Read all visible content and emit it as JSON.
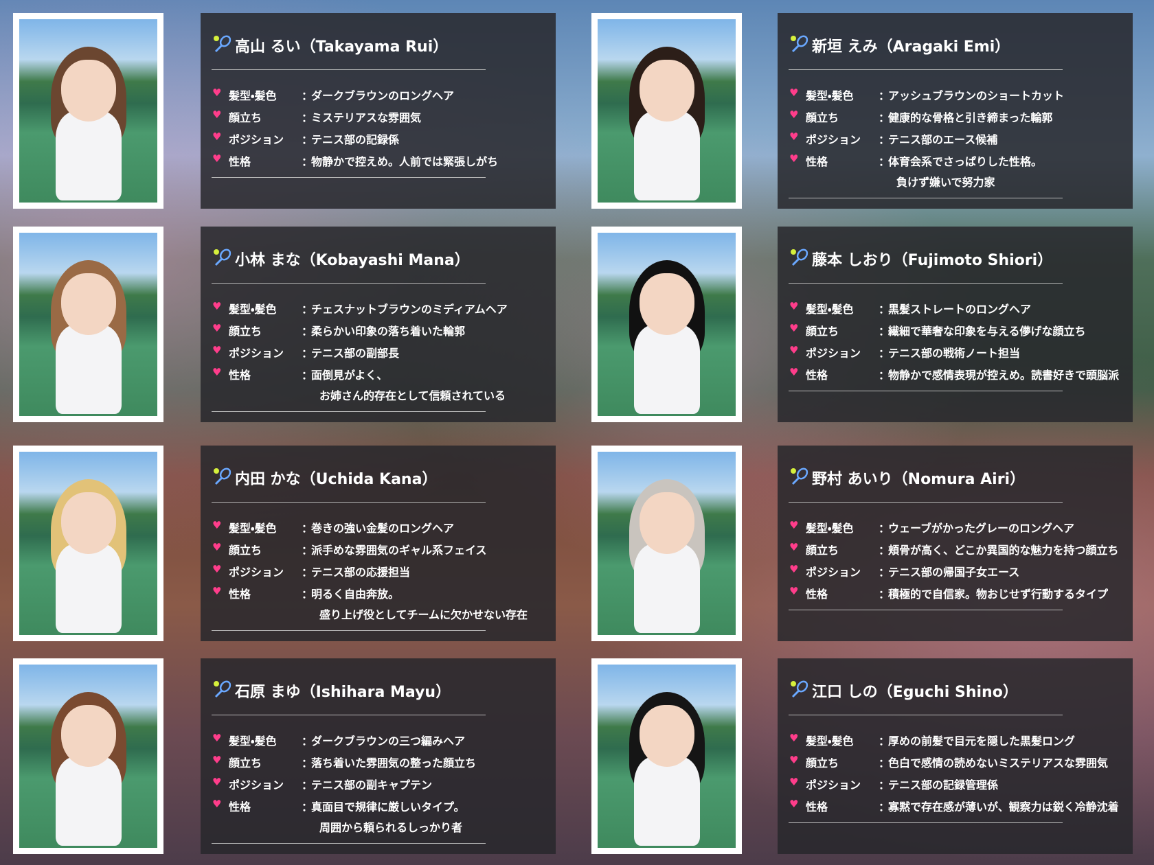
{
  "profiles": [
    {
      "name": "高山 るい（Takayama Rui）",
      "attributes": [
        {
          "label": "髪型・髪色",
          "lines": [
            "ダークブラウンのロングヘア"
          ]
        },
        {
          "label": "顔立ち",
          "lines": [
            "ミステリアスな雰囲気"
          ]
        },
        {
          "label": "ポジション",
          "lines": [
            "テニス部の記録係"
          ]
        },
        {
          "label": "性格",
          "lines": [
            "物静かで控えめ。人前では緊張しがち"
          ]
        }
      ]
    },
    {
      "name": "新垣 えみ（Aragaki Emi）",
      "attributes": [
        {
          "label": "髪型・髪色",
          "lines": [
            "アッシュブラウンのショートカット"
          ]
        },
        {
          "label": "顔立ち",
          "lines": [
            "健康的な骨格と引き締まった輪郭"
          ]
        },
        {
          "label": "ポジション",
          "lines": [
            "テニス部のエース候補"
          ]
        },
        {
          "label": "性格",
          "lines": [
            "体育会系でさっぱりした性格。",
            "負けず嫌いで努力家"
          ]
        }
      ]
    },
    {
      "name": "小林 まな（Kobayashi Mana）",
      "attributes": [
        {
          "label": "髪型・髪色",
          "lines": [
            "チェスナットブラウンのミディアムヘア"
          ]
        },
        {
          "label": "顔立ち",
          "lines": [
            "柔らかい印象の落ち着いた輪郭"
          ]
        },
        {
          "label": "ポジション",
          "lines": [
            "テニス部の副部長"
          ]
        },
        {
          "label": "性格",
          "lines": [
            "面倒見がよく、",
            "お姉さん的存在として信頼されている"
          ]
        }
      ]
    },
    {
      "name": "藤本 しおり（Fujimoto Shiori）",
      "attributes": [
        {
          "label": "髪型・髪色",
          "lines": [
            "黒髪ストレートのロングヘア"
          ]
        },
        {
          "label": "顔立ち",
          "lines": [
            "繊細で華奢な印象を与える儚げな顔立ち"
          ]
        },
        {
          "label": "ポジション",
          "lines": [
            "テニス部の戦術ノート担当"
          ]
        },
        {
          "label": "性格",
          "lines": [
            "物静かで感情表現が控えめ。読書好きで頭脳派"
          ]
        }
      ]
    },
    {
      "name": "内田 かな（Uchida Kana）",
      "attributes": [
        {
          "label": "髪型・髪色",
          "lines": [
            "巻きの強い金髪のロングヘア"
          ]
        },
        {
          "label": "顔立ち",
          "lines": [
            "派手めな雰囲気のギャル系フェイス"
          ]
        },
        {
          "label": "ポジション",
          "lines": [
            "テニス部の応援担当"
          ]
        },
        {
          "label": "性格",
          "lines": [
            "明るく自由奔放。",
            "盛り上げ役としてチームに欠かせない存在"
          ]
        }
      ]
    },
    {
      "name": "野村 あいり（Nomura Airi）",
      "attributes": [
        {
          "label": "髪型・髪色",
          "lines": [
            "ウェーブがかったグレーのロングヘア"
          ]
        },
        {
          "label": "顔立ち",
          "lines": [
            "頬骨が高く、どこか異国的な魅力を持つ顔立ち"
          ]
        },
        {
          "label": "ポジション",
          "lines": [
            "テニス部の帰国子女エース"
          ]
        },
        {
          "label": "性格",
          "lines": [
            "積極的で自信家。物おじせず行動するタイプ"
          ]
        }
      ]
    },
    {
      "name": "石原 まゆ（Ishihara Mayu）",
      "attributes": [
        {
          "label": "髪型・髪色",
          "lines": [
            "ダークブラウンの三つ編みヘア"
          ]
        },
        {
          "label": "顔立ち",
          "lines": [
            "落ち着いた雰囲気の整った顔立ち"
          ]
        },
        {
          "label": "ポジション",
          "lines": [
            "テニス部の副キャプテン"
          ]
        },
        {
          "label": "性格",
          "lines": [
            "真面目で規律に厳しいタイプ。",
            "周囲から頼られるしっかり者"
          ]
        }
      ]
    },
    {
      "name": "江口 しの（Eguchi Shino）",
      "attributes": [
        {
          "label": "髪型・髪色",
          "lines": [
            "厚めの前髪で目元を隠した黒髪ロング"
          ]
        },
        {
          "label": "顔立ち",
          "lines": [
            "色白で感情の読めないミステリアスな雰囲気"
          ]
        },
        {
          "label": "ポジション",
          "lines": [
            "テニス部の記録管理係"
          ]
        },
        {
          "label": "性格",
          "lines": [
            "寡黙で存在感が薄いが、観察力は鋭く冷静沈着"
          ]
        }
      ]
    }
  ]
}
